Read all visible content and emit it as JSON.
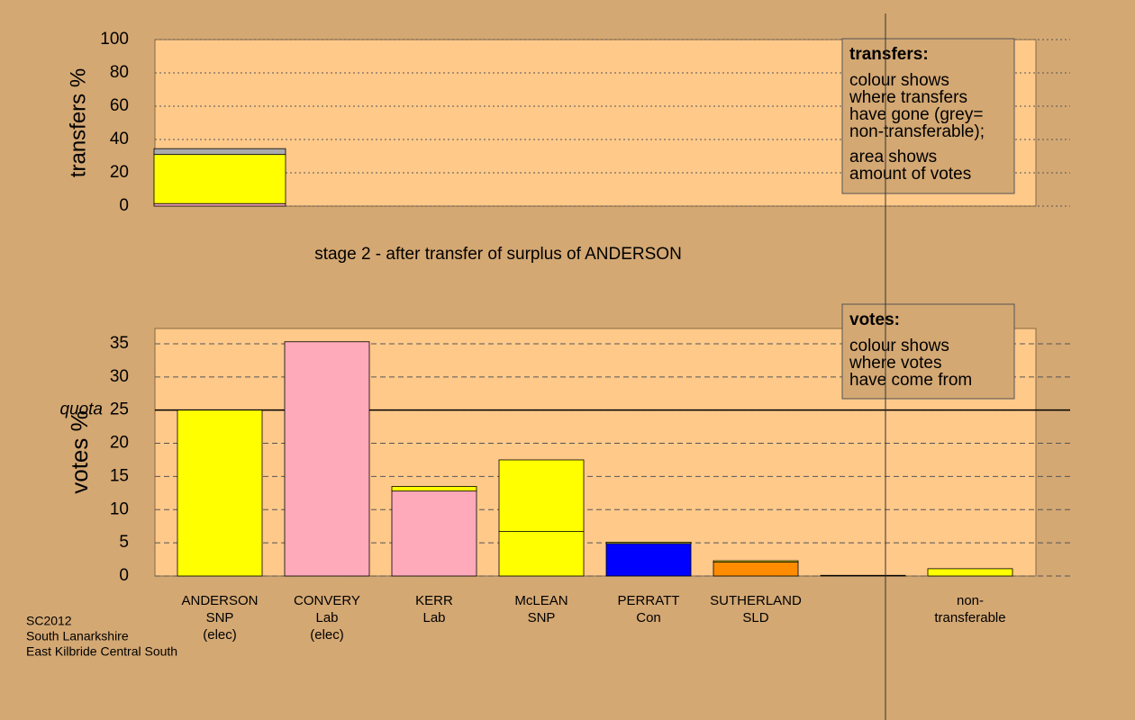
{
  "chart_data": [
    {
      "type": "stacked-bar",
      "ylabel": "transfers %",
      "ylim": [
        0,
        100
      ],
      "yticks": [
        0,
        20,
        40,
        60,
        80,
        100
      ],
      "bars": [
        {
          "segments": [
            {
              "value": 1.5,
              "color": "#ffaabb"
            },
            {
              "value": 29.5,
              "color": "#ffff00"
            },
            {
              "value": 3.5,
              "color": "#aaaaaa"
            }
          ]
        }
      ],
      "note": {
        "title": "transfers:",
        "paragraphs": [
          [
            "colour shows",
            "where transfers",
            "have gone (grey=",
            "non-transferable);"
          ],
          [
            "area shows",
            "amount of votes"
          ]
        ]
      }
    },
    {
      "type": "stacked-bar",
      "title": "stage 2 - after transfer of surplus of ANDERSON",
      "ylabel": "votes %",
      "ylim": [
        0,
        37.3
      ],
      "yticks": [
        0,
        5,
        10,
        15,
        20,
        25,
        30,
        35
      ],
      "quota": {
        "value": 25,
        "label": "quota"
      },
      "categories": [
        [
          "ANDERSON",
          "SNP",
          "(elec)"
        ],
        [
          "CONVERY",
          "Lab",
          "(elec)"
        ],
        [
          "KERR",
          "Lab"
        ],
        [
          "McLEAN",
          "SNP"
        ],
        [
          "PERRATT",
          "Con"
        ],
        [
          "SUTHERLAND",
          "SLD"
        ],
        null,
        [
          "non-",
          "transferable"
        ]
      ],
      "bars": [
        {
          "segments": [
            {
              "value": 25,
              "color": "#ffff00"
            }
          ]
        },
        {
          "segments": [
            {
              "value": 35.3,
              "color": "#ffaabb"
            }
          ]
        },
        {
          "segments": [
            {
              "value": 12.8,
              "color": "#ffaabb"
            },
            {
              "value": 0.7,
              "color": "#ffff00"
            }
          ]
        },
        {
          "segments": [
            {
              "value": 6.7,
              "color": "#ffff00"
            },
            {
              "value": 10.8,
              "color": "#ffff00"
            }
          ]
        },
        {
          "segments": [
            {
              "value": 4.9,
              "color": "#0000ff"
            },
            {
              "value": 0.2,
              "color": "#ffff00"
            }
          ]
        },
        {
          "segments": [
            {
              "value": 2.1,
              "color": "#ff8c00"
            },
            {
              "value": 0.2,
              "color": "#ffff00"
            }
          ]
        },
        {
          "segments": [
            {
              "value": 0.1,
              "color": "#ffff00"
            }
          ]
        },
        {
          "segments": [
            {
              "value": 1.1,
              "color": "#ffff00"
            }
          ]
        }
      ],
      "note": {
        "title": "votes:",
        "paragraphs": [
          [
            "colour shows",
            "where votes",
            "have come from"
          ]
        ]
      }
    }
  ],
  "footer": [
    "SC2012",
    "South Lanarkshire",
    "East Kilbride Central South"
  ]
}
